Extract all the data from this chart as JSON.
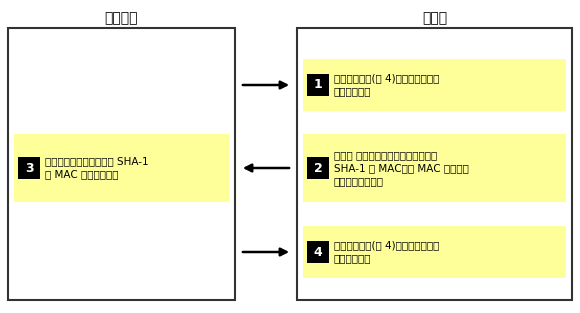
{
  "title_left": "网络设备",
  "title_right": "服务器",
  "bg_color": "#ffffff",
  "border_color": "#333333",
  "yellow_bg": "#ffff99",
  "black_num_bg": "#000000",
  "items": [
    {
      "num": "3",
      "lines": [
        "网络设备使用新的数据和 SHA-1",
        "写 MAC 进行升级操作"
      ],
      "side": "left",
      "row": 1
    },
    {
      "num": "1",
      "lines": [
        "执行认证操作(图 4)，该操作验证当",
        "前的功能选项"
      ],
      "side": "right",
      "row": 0
    },
    {
      "num": "2",
      "lines": [
        "服务器 为新的功能选项和随机数创建",
        "SHA-1 写 MAC，将 MAC 和新数据",
        "发送给网络设备。"
      ],
      "side": "right",
      "row": 1
    },
    {
      "num": "4",
      "lines": [
        "执行认证操作(图 4)，该操作验证新",
        "的功能选项。"
      ],
      "side": "right",
      "row": 2
    }
  ],
  "arrows": [
    {
      "row": 0,
      "direction": "right"
    },
    {
      "row": 1,
      "direction": "left"
    },
    {
      "row": 2,
      "direction": "right"
    }
  ]
}
